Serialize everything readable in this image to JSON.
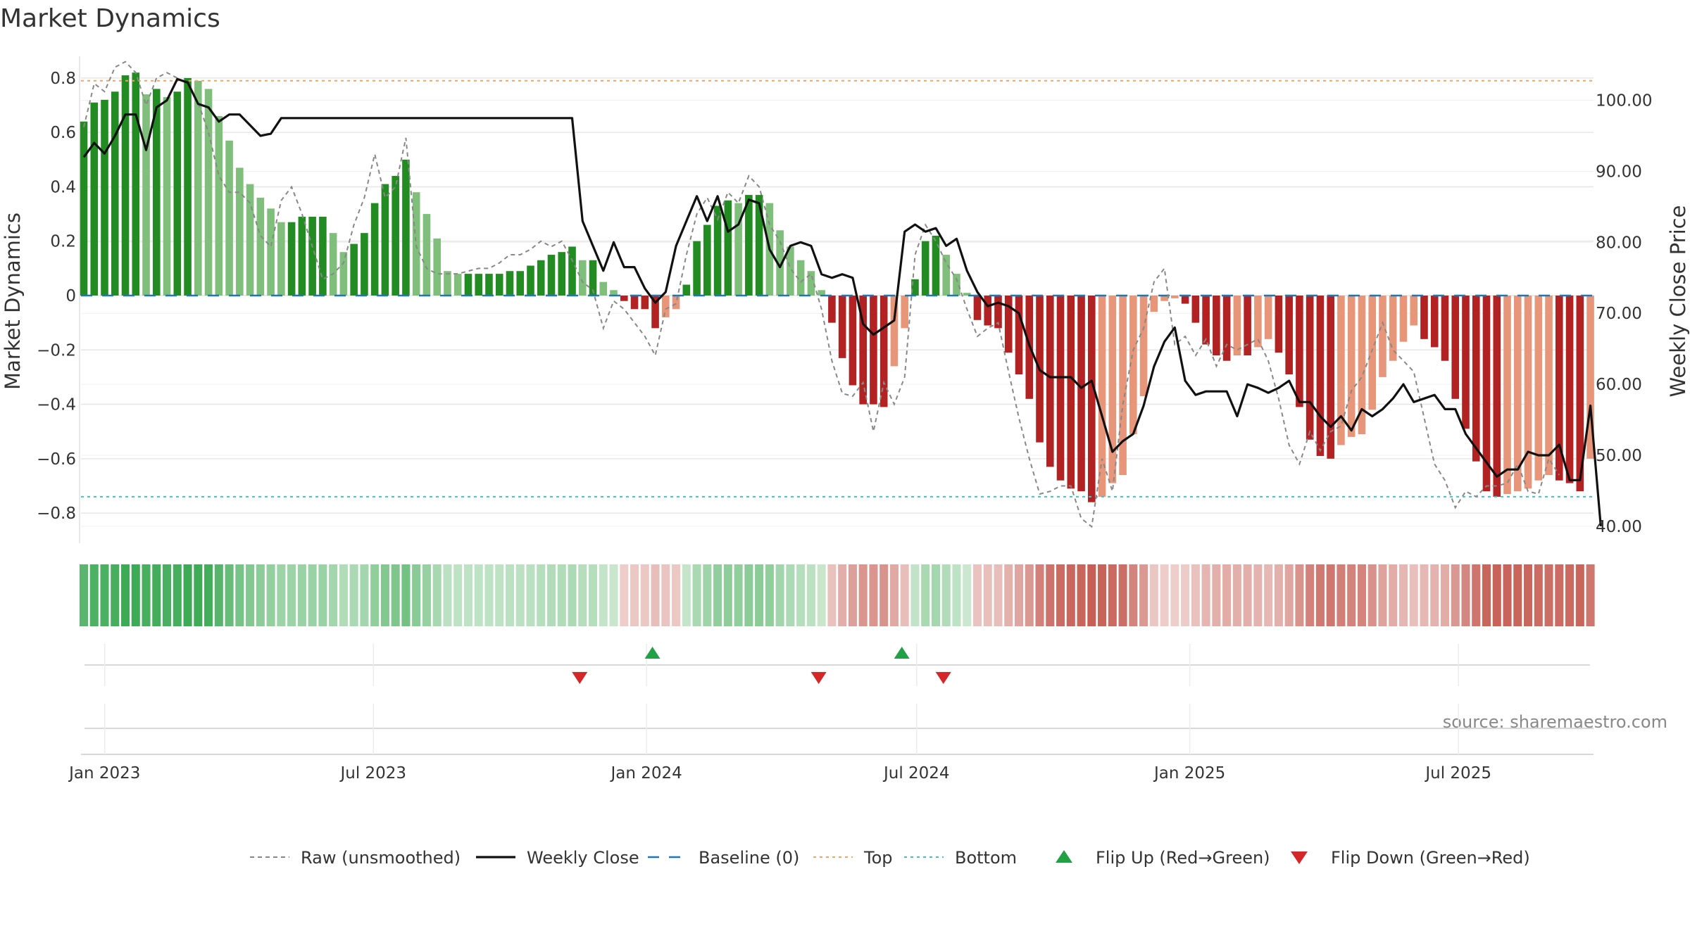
{
  "chart_data": {
    "type": "bar",
    "title": "Market Dynamics",
    "ylabel_left": "Market Dynamics",
    "ylabel_right": "Weekly Close Price",
    "source": "source: sharemaestro.com",
    "ylim_left": [
      -0.88,
      0.88
    ],
    "ylim_right": [
      38.8,
      106.2
    ],
    "xlim": [
      "2022-12-16",
      "2025-09-30"
    ],
    "left_ticks": [
      "0.8",
      "0.6",
      "0.4",
      "0.2",
      "0",
      "−0.2",
      "−0.4",
      "−0.6",
      "−0.8"
    ],
    "right_ticks": [
      "100.00",
      "90.00",
      "80.00",
      "70.00",
      "60.00",
      "50.00",
      "40.00"
    ],
    "x_ticks": [
      {
        "date": "2023-01-01",
        "label": "Jan 2023"
      },
      {
        "date": "2023-07-01",
        "label": "Jul 2023"
      },
      {
        "date": "2024-01-01",
        "label": "Jan 2024"
      },
      {
        "date": "2024-07-01",
        "label": "Jul 2024"
      },
      {
        "date": "2025-01-01",
        "label": "Jan 2025"
      },
      {
        "date": "2025-07-01",
        "label": "Jul 2025"
      }
    ],
    "top_level": 0.79,
    "bottom_level": -0.74,
    "baseline": 0,
    "start_week": "2022-12-16",
    "values": [
      0.64,
      0.71,
      0.72,
      0.75,
      0.81,
      0.82,
      0.74,
      0.76,
      0.73,
      0.75,
      0.8,
      0.79,
      0.76,
      0.66,
      0.57,
      0.47,
      0.41,
      0.36,
      0.32,
      0.27,
      0.27,
      0.29,
      0.29,
      0.29,
      0.23,
      0.16,
      0.19,
      0.23,
      0.34,
      0.41,
      0.44,
      0.5,
      0.38,
      0.3,
      0.21,
      0.09,
      0.08,
      0.08,
      0.08,
      0.08,
      0.08,
      0.09,
      0.09,
      0.11,
      0.13,
      0.15,
      0.16,
      0.18,
      0.13,
      0.13,
      0.05,
      0.02,
      -0.02,
      -0.05,
      -0.05,
      -0.12,
      -0.08,
      -0.05,
      0.04,
      0.2,
      0.26,
      0.33,
      0.35,
      0.34,
      0.37,
      0.37,
      0.34,
      0.24,
      0.18,
      0.13,
      0.09,
      0.02,
      -0.1,
      -0.23,
      -0.33,
      -0.4,
      -0.4,
      -0.41,
      -0.26,
      -0.12,
      0.06,
      0.2,
      0.22,
      0.15,
      0.08,
      0.01,
      -0.09,
      -0.11,
      -0.12,
      -0.21,
      -0.29,
      -0.38,
      -0.54,
      -0.63,
      -0.68,
      -0.71,
      -0.72,
      -0.76,
      -0.74,
      -0.69,
      -0.66,
      -0.51,
      -0.37,
      -0.06,
      -0.02,
      -0.01,
      -0.03,
      -0.1,
      -0.18,
      -0.22,
      -0.24,
      -0.22,
      -0.22,
      -0.19,
      -0.16,
      -0.21,
      -0.29,
      -0.41,
      -0.53,
      -0.59,
      -0.6,
      -0.55,
      -0.52,
      -0.51,
      -0.42,
      -0.3,
      -0.24,
      -0.17,
      -0.11,
      -0.16,
      -0.19,
      -0.24,
      -0.38,
      -0.49,
      -0.61,
      -0.72,
      -0.74,
      -0.73,
      -0.72,
      -0.71,
      -0.68,
      -0.66,
      -0.68,
      -0.69,
      -0.72,
      -0.6
    ],
    "raw": [
      0.62,
      0.78,
      0.75,
      0.84,
      0.86,
      0.82,
      0.7,
      0.8,
      0.82,
      0.8,
      0.78,
      0.71,
      0.6,
      0.44,
      0.38,
      0.38,
      0.34,
      0.22,
      0.18,
      0.35,
      0.4,
      0.3,
      0.18,
      0.06,
      0.08,
      0.12,
      0.26,
      0.36,
      0.52,
      0.36,
      0.4,
      0.58,
      0.18,
      0.1,
      0.08,
      0.08,
      0.08,
      0.09,
      0.1,
      0.1,
      0.12,
      0.15,
      0.15,
      0.17,
      0.2,
      0.18,
      0.2,
      0.13,
      0.05,
      0.02,
      -0.12,
      -0.02,
      -0.05,
      -0.1,
      -0.15,
      -0.22,
      -0.05,
      -0.03,
      0.15,
      0.3,
      0.36,
      0.28,
      0.38,
      0.34,
      0.44,
      0.4,
      0.26,
      0.2,
      0.1,
      0.05,
      0.08,
      -0.05,
      -0.24,
      -0.36,
      -0.37,
      -0.32,
      -0.5,
      -0.32,
      -0.4,
      -0.3,
      0.15,
      0.26,
      0.2,
      0.12,
      0.06,
      -0.05,
      -0.15,
      -0.12,
      -0.1,
      -0.28,
      -0.45,
      -0.6,
      -0.73,
      -0.72,
      -0.7,
      -0.7,
      -0.82,
      -0.85,
      -0.6,
      -0.72,
      -0.4,
      -0.2,
      -0.12,
      0.05,
      0.1,
      -0.18,
      -0.15,
      -0.22,
      -0.16,
      -0.26,
      -0.18,
      -0.2,
      -0.18,
      -0.16,
      -0.24,
      -0.38,
      -0.55,
      -0.62,
      -0.5,
      -0.57,
      -0.5,
      -0.48,
      -0.35,
      -0.3,
      -0.2,
      -0.1,
      -0.2,
      -0.24,
      -0.28,
      -0.45,
      -0.62,
      -0.68,
      -0.78,
      -0.72,
      -0.74,
      -0.7,
      -0.7,
      -0.69,
      -0.62,
      -0.72,
      -0.73,
      -0.6,
      -0.66
    ],
    "price": [
      92.0,
      94.0,
      92.5,
      95.0,
      98.0,
      98.0,
      93.0,
      99.0,
      100.0,
      103.0,
      102.5,
      99.5,
      99.0,
      97.0,
      98.0,
      98.0,
      96.5,
      95.0,
      95.3,
      97.5,
      97.5,
      97.5,
      97.5,
      97.5,
      97.5,
      97.5,
      97.5,
      97.5,
      97.5,
      97.5,
      97.5,
      97.5,
      97.5,
      97.5,
      97.5,
      97.5,
      97.5,
      97.5,
      97.5,
      97.5,
      97.5,
      97.5,
      97.5,
      97.5,
      97.5,
      97.5,
      97.5,
      97.5,
      83.0,
      79.5,
      76.0,
      80.0,
      76.5,
      76.5,
      73.5,
      71.5,
      73.0,
      79.5,
      83.0,
      86.5,
      83.0,
      86.5,
      81.5,
      82.5,
      86.0,
      85.5,
      79.0,
      76.5,
      79.5,
      80.0,
      79.5,
      75.5,
      75.0,
      75.5,
      75.0,
      68.5,
      67.0,
      68.0,
      69.0,
      81.5,
      82.5,
      81.5,
      82.0,
      79.5,
      80.5,
      76.0,
      73.0,
      71.0,
      71.5,
      71.0,
      70.0,
      65.5,
      62.0,
      61.0,
      61.0,
      61.0,
      59.5,
      60.5,
      55.5,
      50.5,
      52.0,
      53.0,
      57.0,
      62.5,
      66.0,
      68.0,
      60.5,
      58.5,
      59.0,
      59.0,
      59.0,
      55.5,
      60.0,
      59.5,
      58.8,
      59.5,
      60.5,
      57.5,
      57.5,
      55.5,
      54.0,
      55.5,
      53.5,
      56.5,
      55.5,
      56.5,
      58.0,
      60.0,
      57.5,
      58.0,
      58.5,
      56.5,
      56.5,
      53.0,
      51.0,
      49.0,
      47.0,
      48.0,
      48.0,
      50.5,
      50.0,
      50.0,
      51.5,
      46.5,
      46.5,
      57.0,
      40.0
    ],
    "strip_from_values": true,
    "flip_up": [
      "2024-01-05",
      "2024-06-21"
    ],
    "flip_down": [
      "2023-11-17",
      "2024-04-26",
      "2024-07-19"
    ],
    "legend": [
      {
        "name": "Raw (unsmoothed)",
        "kind": "dash-gray"
      },
      {
        "name": "Weekly Close",
        "kind": "line-black"
      },
      {
        "name": "Baseline (0)",
        "kind": "dash-blue"
      },
      {
        "name": "Top",
        "kind": "dot-orange"
      },
      {
        "name": "Bottom",
        "kind": "dot-teal"
      },
      {
        "name": "Flip Up (Red→Green)",
        "kind": "tri-up"
      },
      {
        "name": "Flip Down (Green→Red)",
        "kind": "tri-down"
      }
    ],
    "colors": {
      "strong_green": "#228B22",
      "light_green": "#7fbf7b",
      "strong_red": "#b22222",
      "light_red": "#e8967a",
      "raw": "#888888",
      "price": "#111111",
      "baseline": "#1f77b4",
      "top": "#f4a460",
      "bottom": "#40c4c4",
      "flip_up": "#22a045",
      "flip_down": "#d62728",
      "grid": "#e6e6e6"
    },
    "grid": true
  }
}
